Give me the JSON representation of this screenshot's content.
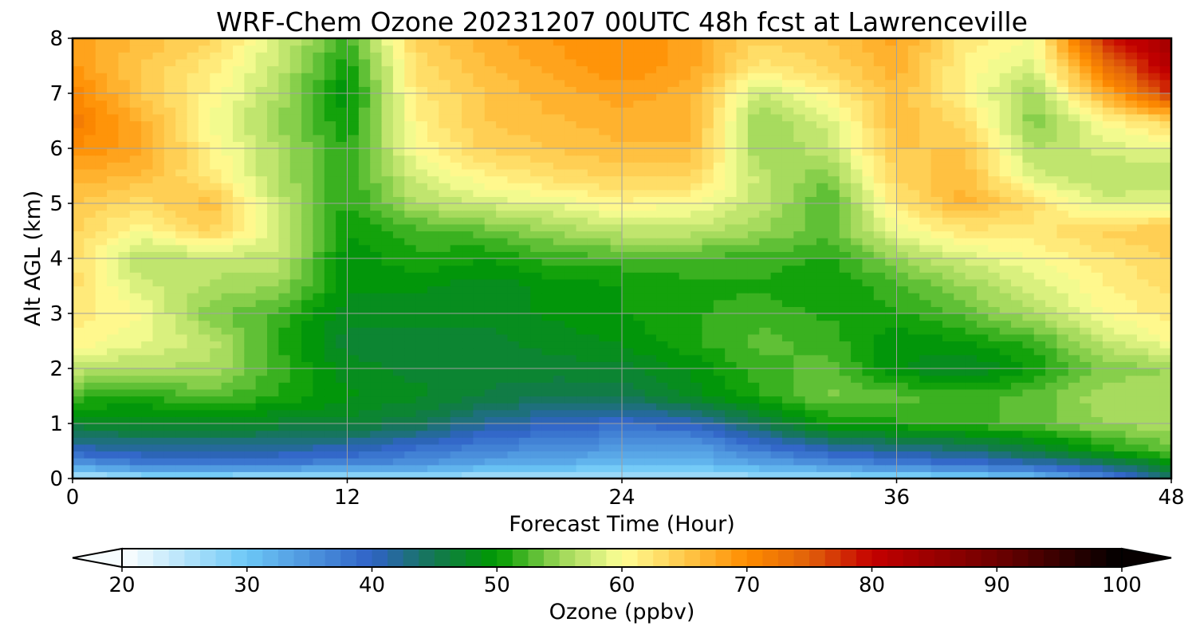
{
  "chart_data": {
    "type": "heatmap",
    "title": "WRF-Chem Ozone  20231207 00UTC 48h fcst at Lawrenceville",
    "xlabel": "Forecast Time (Hour)",
    "ylabel": "Alt AGL (km)",
    "xlim": [
      0,
      48
    ],
    "ylim": [
      0,
      8
    ],
    "xticks": [
      0,
      12,
      24,
      36,
      48
    ],
    "yticks": [
      0,
      1,
      2,
      3,
      4,
      5,
      6,
      7,
      8
    ],
    "grid": true,
    "x": [
      0,
      3,
      6,
      9,
      12,
      15,
      18,
      21,
      24,
      27,
      30,
      33,
      36,
      39,
      42,
      45,
      48
    ],
    "y": [
      0,
      0.25,
      0.5,
      1,
      1.5,
      2,
      2.5,
      3,
      3.5,
      4,
      4.5,
      5,
      5.5,
      6,
      6.5,
      7,
      7.5,
      8
    ],
    "z_rows": [
      [
        24,
        26,
        26,
        25,
        25,
        26,
        25,
        25,
        25,
        25,
        26,
        26,
        27,
        28,
        30,
        36,
        44
      ],
      [
        34,
        37,
        38,
        37,
        36,
        35,
        33,
        32,
        31,
        31,
        33,
        35,
        37,
        38,
        40,
        43,
        48
      ],
      [
        40,
        41,
        41,
        41,
        40,
        38,
        36,
        35,
        34,
        33,
        37,
        40,
        42,
        43,
        46,
        50,
        53
      ],
      [
        47,
        48,
        48,
        47,
        47,
        45,
        42,
        40,
        39,
        40,
        45,
        50,
        51,
        52,
        53,
        55,
        56
      ],
      [
        52,
        51,
        53,
        51,
        49,
        48,
        46,
        45,
        45,
        48,
        51,
        54,
        53,
        52,
        53,
        56,
        56
      ],
      [
        57,
        56,
        56,
        52,
        48,
        47,
        47,
        47,
        47,
        49,
        52,
        53,
        49,
        47,
        50,
        54,
        55
      ],
      [
        61,
        59,
        57,
        51,
        47,
        47,
        47,
        48,
        49,
        51,
        53,
        52,
        49,
        50,
        52,
        57,
        60
      ],
      [
        62,
        60,
        54,
        52,
        48,
        48,
        48,
        49,
        50,
        51,
        52,
        51,
        51,
        53,
        56,
        60,
        62
      ],
      [
        63,
        58,
        56,
        55,
        49,
        49,
        48,
        49,
        50,
        51,
        51,
        50,
        52,
        55,
        58,
        61,
        63
      ],
      [
        63,
        56,
        57,
        57,
        49,
        51,
        50,
        52,
        52,
        52,
        52,
        51,
        55,
        58,
        60,
        62,
        64
      ],
      [
        64,
        60,
        64,
        58,
        50,
        52,
        53,
        55,
        57,
        57,
        55,
        53,
        59,
        62,
        62,
        64,
        65
      ],
      [
        65,
        63,
        66,
        57,
        51,
        56,
        58,
        59,
        61,
        60,
        57,
        52,
        62,
        67,
        63,
        58,
        59
      ],
      [
        67,
        66,
        62,
        56,
        51,
        58,
        61,
        63,
        64,
        64,
        57,
        54,
        64,
        66,
        58,
        56,
        56
      ],
      [
        70,
        68,
        61,
        56,
        51,
        60,
        64,
        65,
        66,
        66,
        55,
        57,
        65,
        65,
        56,
        58,
        59
      ],
      [
        72,
        67,
        60,
        55,
        50,
        61,
        65,
        66,
        67,
        67,
        55,
        58,
        66,
        63,
        54,
        60,
        64
      ],
      [
        71,
        65,
        61,
        56,
        49,
        62,
        65,
        67,
        68,
        67,
        57,
        61,
        66,
        61,
        55,
        67,
        78
      ],
      [
        69,
        65,
        62,
        57,
        50,
        63,
        66,
        68,
        70,
        68,
        62,
        64,
        67,
        61,
        58,
        73,
        82
      ],
      [
        68,
        66,
        64,
        58,
        52,
        64,
        67,
        69,
        70,
        68,
        64,
        65,
        68,
        62,
        60,
        78,
        84
      ]
    ],
    "colorbar": {
      "label": "Ozone  (ppbv)",
      "vmin": 20,
      "vmax": 100,
      "ticks": [
        20,
        30,
        40,
        50,
        60,
        70,
        80,
        90,
        100
      ],
      "extend": "both",
      "orientation": "horizontal",
      "color_stops": [
        [
          20,
          "#ffffff"
        ],
        [
          30,
          "#6cc7f6"
        ],
        [
          40,
          "#2f62c6"
        ],
        [
          45,
          "#137850"
        ],
        [
          50,
          "#009a00"
        ],
        [
          55,
          "#9ad656"
        ],
        [
          60,
          "#ffff96"
        ],
        [
          65,
          "#ffc84a"
        ],
        [
          70,
          "#ff8c00"
        ],
        [
          75,
          "#e0600a"
        ],
        [
          80,
          "#c40000"
        ],
        [
          90,
          "#6e0000"
        ],
        [
          100,
          "#000000"
        ]
      ]
    }
  }
}
